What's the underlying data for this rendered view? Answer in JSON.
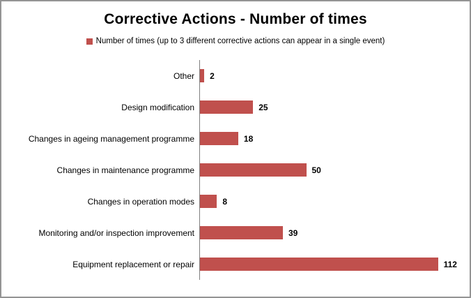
{
  "title": "Corrective Actions - Number of times",
  "legend": {
    "label": "Number of times (up to 3 different corrective actions can appear in a single event)",
    "marker_color": "#C0504D"
  },
  "colors": {
    "bar": "#C0504D",
    "axis": "#808080",
    "frame_border": "#949494",
    "text": "#000000"
  },
  "chart_data": {
    "type": "bar",
    "orientation": "horizontal",
    "title": "Corrective Actions - Number of times",
    "legend_entries": [
      "Number of times (up to 3 different corrective actions can appear in a single event)"
    ],
    "legend_position": "top",
    "categories": [
      "Other",
      "Design modification",
      "Changes in ageing management programme",
      "Changes in maintenance programme",
      "Changes in operation modes",
      "Monitoring and/or inspection improvement",
      "Equipment replacement or repair"
    ],
    "values": [
      2,
      25,
      18,
      50,
      8,
      39,
      112
    ],
    "value_labels_shown": true,
    "bar_color": "#C0504D",
    "xlabel": "",
    "ylabel": "",
    "xlim": [
      0,
      120
    ],
    "gridlines": false
  }
}
